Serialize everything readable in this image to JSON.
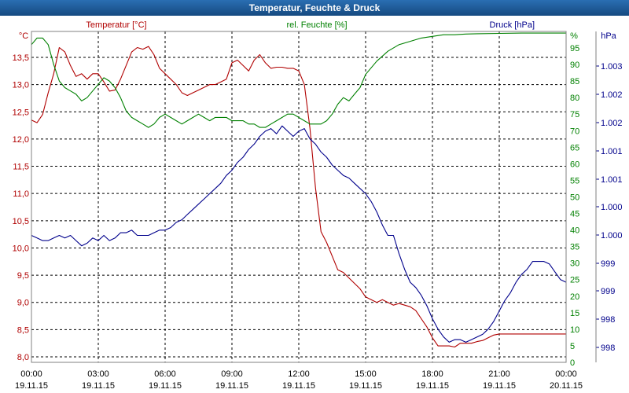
{
  "window": {
    "title": "Temperatur, Feuchte & Druck",
    "title_bar_color": "#1c5a96",
    "title_text_color": "#ffffff"
  },
  "chart_data": {
    "type": "line",
    "title": "Temperatur, Feuchte & Druck",
    "grid": true,
    "x_ticks": [
      {
        "time": "00:00",
        "date": "19.11.15"
      },
      {
        "time": "03:00",
        "date": "19.11.15"
      },
      {
        "time": "06:00",
        "date": "19.11.15"
      },
      {
        "time": "09:00",
        "date": "19.11.15"
      },
      {
        "time": "12:00",
        "date": "19.11.15"
      },
      {
        "time": "15:00",
        "date": "19.11.15"
      },
      {
        "time": "18:00",
        "date": "19.11.15"
      },
      {
        "time": "21:00",
        "date": "19.11.15"
      },
      {
        "time": "00:00",
        "date": "20.11.15"
      }
    ],
    "axes": {
      "temperature": {
        "label": "Temperatur [°C]",
        "unit": "°C",
        "range": [
          8.0,
          13.5
        ],
        "ticks": [
          "13,5",
          "13,0",
          "12,5",
          "12,0",
          "11,5",
          "11,0",
          "10,5",
          "10,0",
          "9,5",
          "9,0",
          "8,5",
          "8,0"
        ],
        "color": "#b00000"
      },
      "humidity": {
        "label": "rel. Feuchte [%]",
        "unit": "%",
        "range": [
          0,
          95
        ],
        "ticks": [
          "95",
          "90",
          "85",
          "80",
          "75",
          "70",
          "65",
          "60",
          "55",
          "50",
          "45",
          "40",
          "35",
          "30",
          "25",
          "20",
          "15",
          "10",
          "5",
          "0"
        ],
        "color": "#008000"
      },
      "pressure": {
        "label": "Druck [hPa]",
        "unit": "hPa",
        "ticks": [
          "1.003",
          "1.002",
          "1.002",
          "1.001",
          "1.001",
          "1.000",
          "1.000",
          "999",
          "999",
          "998",
          "998"
        ],
        "color": "#00008b"
      }
    },
    "series": [
      {
        "name": "Temperatur [°C]",
        "axis": "temperature",
        "color": "#b00000",
        "x_hours": [
          0,
          0.25,
          0.5,
          0.75,
          1.0,
          1.25,
          1.5,
          1.75,
          2.0,
          2.25,
          2.5,
          2.75,
          3.0,
          3.25,
          3.5,
          3.75,
          4.0,
          4.25,
          4.5,
          4.75,
          5.0,
          5.25,
          5.5,
          5.75,
          6.0,
          6.25,
          6.5,
          6.75,
          7.0,
          7.25,
          7.5,
          7.75,
          8.0,
          8.25,
          8.5,
          8.75,
          9.0,
          9.25,
          9.5,
          9.75,
          10.0,
          10.25,
          10.5,
          10.75,
          11.0,
          11.25,
          11.5,
          11.75,
          12.0,
          12.25,
          12.5,
          12.75,
          13.0,
          13.25,
          13.5,
          13.75,
          14.0,
          14.25,
          14.5,
          14.75,
          15.0,
          15.25,
          15.5,
          15.75,
          16.0,
          16.25,
          16.5,
          16.75,
          17.0,
          17.25,
          17.5,
          17.75,
          18.0,
          18.25,
          18.5,
          18.75,
          19.0,
          19.25,
          19.5,
          19.75,
          20.0,
          20.25,
          20.5,
          20.75,
          21.0,
          21.25,
          21.5,
          21.75,
          22.0,
          22.25,
          22.5,
          22.75,
          23.0,
          23.25,
          23.5,
          23.75,
          24.0
        ],
        "values": [
          12.35,
          12.3,
          12.45,
          12.85,
          13.2,
          13.68,
          13.6,
          13.35,
          13.15,
          13.2,
          13.1,
          13.2,
          13.2,
          13.05,
          12.88,
          12.9,
          13.1,
          13.35,
          13.6,
          13.68,
          13.65,
          13.7,
          13.55,
          13.3,
          13.2,
          13.1,
          13.0,
          12.85,
          12.8,
          12.85,
          12.9,
          12.95,
          13.0,
          13.0,
          13.05,
          13.1,
          13.4,
          13.45,
          13.35,
          13.25,
          13.45,
          13.55,
          13.4,
          13.3,
          13.32,
          13.32,
          13.3,
          13.3,
          13.25,
          13.0,
          12.2,
          11.1,
          10.3,
          10.1,
          9.85,
          9.6,
          9.55,
          9.45,
          9.35,
          9.25,
          9.1,
          9.05,
          9.0,
          9.05,
          9.0,
          8.95,
          8.98,
          8.95,
          8.92,
          8.85,
          8.7,
          8.55,
          8.35,
          8.2,
          8.2,
          8.2,
          8.18,
          8.25,
          8.25,
          8.25,
          8.28,
          8.3,
          8.35,
          8.4,
          8.42,
          8.42,
          8.42,
          8.42,
          8.42,
          8.42,
          8.42,
          8.42,
          8.42,
          8.42,
          8.42,
          8.42,
          8.42
        ]
      },
      {
        "name": "rel. Feuchte [%]",
        "axis": "humidity",
        "color": "#008000",
        "x_hours": [
          0,
          0.25,
          0.5,
          0.75,
          1.0,
          1.25,
          1.5,
          1.75,
          2.0,
          2.25,
          2.5,
          2.75,
          3.0,
          3.25,
          3.5,
          3.75,
          4.0,
          4.25,
          4.5,
          4.75,
          5.0,
          5.25,
          5.5,
          5.75,
          6.0,
          6.25,
          6.5,
          6.75,
          7.0,
          7.25,
          7.5,
          7.75,
          8.0,
          8.25,
          8.5,
          8.75,
          9.0,
          9.25,
          9.5,
          9.75,
          10.0,
          10.25,
          10.5,
          10.75,
          11.0,
          11.25,
          11.5,
          11.75,
          12.0,
          12.25,
          12.5,
          12.75,
          13.0,
          13.25,
          13.5,
          13.75,
          14.0,
          14.25,
          14.5,
          14.75,
          15.0,
          15.5,
          16.0,
          16.5,
          17.0,
          17.5,
          18.0,
          18.5,
          19.0,
          19.5,
          20.0,
          21.0,
          22.0,
          23.0,
          24.0
        ],
        "values": [
          96,
          98,
          98,
          96,
          90,
          85,
          83,
          82,
          81,
          79,
          80,
          82,
          84,
          86,
          85,
          83,
          80,
          76,
          74,
          73,
          72,
          71,
          72,
          74,
          75,
          74,
          73,
          72,
          73,
          74,
          75,
          74,
          73,
          74,
          74,
          74,
          73,
          73,
          73,
          72,
          72,
          71,
          71,
          72,
          73,
          74,
          75,
          75,
          74,
          73,
          72,
          72,
          72,
          73,
          75,
          78,
          80,
          79,
          81,
          83,
          87,
          91,
          94,
          96,
          97,
          98,
          98.5,
          99,
          99,
          99.2,
          99.3,
          99.4,
          99.5,
          99.5,
          99.5
        ]
      },
      {
        "name": "Druck [hPa]",
        "axis": "pressure",
        "color": "#00008b",
        "x_hours": [
          0,
          0.25,
          0.5,
          0.75,
          1.0,
          1.25,
          1.5,
          1.75,
          2.0,
          2.25,
          2.5,
          2.75,
          3.0,
          3.25,
          3.5,
          3.75,
          4.0,
          4.25,
          4.5,
          4.75,
          5.0,
          5.25,
          5.5,
          5.75,
          6.0,
          6.25,
          6.5,
          6.75,
          7.0,
          7.25,
          7.5,
          7.75,
          8.0,
          8.25,
          8.5,
          8.75,
          9.0,
          9.25,
          9.5,
          9.75,
          10.0,
          10.25,
          10.5,
          10.75,
          11.0,
          11.25,
          11.5,
          11.75,
          12.0,
          12.25,
          12.5,
          12.75,
          13.0,
          13.25,
          13.5,
          13.75,
          14.0,
          14.25,
          14.5,
          14.75,
          15.0,
          15.25,
          15.5,
          15.75,
          16.0,
          16.25,
          16.5,
          16.75,
          17.0,
          17.25,
          17.5,
          17.75,
          18.0,
          18.25,
          18.5,
          18.75,
          19.0,
          19.25,
          19.5,
          19.75,
          20.0,
          20.25,
          20.5,
          20.75,
          21.0,
          21.25,
          21.5,
          21.75,
          22.0,
          22.25,
          22.5,
          22.75,
          23.0,
          23.25,
          23.5,
          23.75,
          24.0
        ],
        "values": [
          999.95,
          999.9,
          999.85,
          999.85,
          999.9,
          999.95,
          999.9,
          999.95,
          999.85,
          999.75,
          999.8,
          999.9,
          999.85,
          999.95,
          999.85,
          999.9,
          1000.0,
          1000.0,
          1000.05,
          999.95,
          999.95,
          999.95,
          1000.0,
          1000.05,
          1000.05,
          1000.1,
          1000.2,
          1000.25,
          1000.35,
          1000.45,
          1000.55,
          1000.65,
          1000.75,
          1000.85,
          1000.95,
          1001.1,
          1001.2,
          1001.35,
          1001.45,
          1001.6,
          1001.7,
          1001.85,
          1001.95,
          1002.0,
          1001.9,
          1002.05,
          1001.95,
          1001.85,
          1001.95,
          1002.0,
          1001.8,
          1001.7,
          1001.55,
          1001.45,
          1001.3,
          1001.2,
          1001.1,
          1001.05,
          1000.95,
          1000.85,
          1000.75,
          1000.6,
          1000.4,
          1000.15,
          999.95,
          999.95,
          999.6,
          999.3,
          999.05,
          998.95,
          998.8,
          998.6,
          998.35,
          998.15,
          998.0,
          997.9,
          997.95,
          997.95,
          997.9,
          997.95,
          998.0,
          998.05,
          998.15,
          998.3,
          998.5,
          998.7,
          998.85,
          999.05,
          999.2,
          999.3,
          999.45,
          999.45,
          999.45,
          999.4,
          999.25,
          999.1,
          999.05
        ]
      }
    ]
  }
}
